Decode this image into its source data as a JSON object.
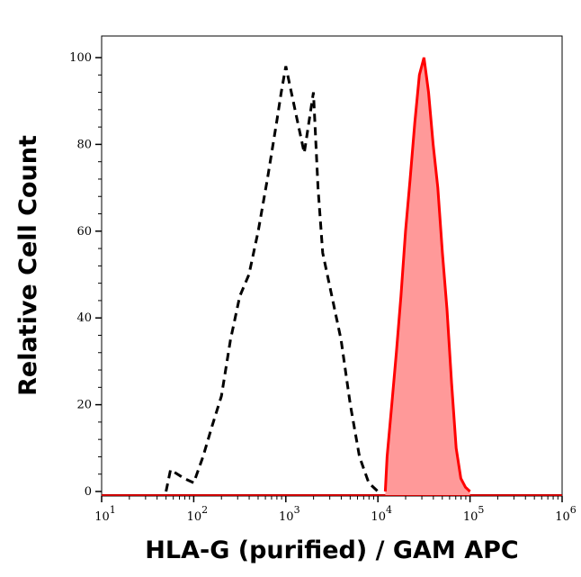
{
  "chart_data": {
    "type": "area",
    "title": "",
    "xlabel": "HLA-G (purified) / GAM APC",
    "ylabel": "Relative Cell Count",
    "xscale": "log",
    "xlim": [
      10,
      1000000
    ],
    "ylim": [
      0,
      105
    ],
    "grid": false,
    "x_tick_labels": [
      {
        "base": "10",
        "exp": "1",
        "value": 10
      },
      {
        "base": "10",
        "exp": "2",
        "value": 100
      },
      {
        "base": "10",
        "exp": "3",
        "value": 1000
      },
      {
        "base": "10",
        "exp": "4",
        "value": 10000
      },
      {
        "base": "10",
        "exp": "5",
        "value": 100000
      },
      {
        "base": "10",
        "exp": "6",
        "value": 1000000
      }
    ],
    "y_ticks": [
      "0",
      "20",
      "40",
      "60",
      "80",
      "100"
    ],
    "series": [
      {
        "style": "dashed-line",
        "color": "#000000",
        "x": [
          50,
          56,
          79,
          100,
          126,
          158,
          200,
          251,
          316,
          398,
          501,
          631,
          794,
          891,
          1000,
          1259,
          1585,
          1995,
          2239,
          2512,
          3162,
          3981,
          5012,
          6310,
          7943,
          10000
        ],
        "y": [
          0,
          5,
          3,
          2,
          8,
          15,
          22,
          35,
          45,
          50,
          60,
          72,
          85,
          92,
          98,
          88,
          78,
          92,
          70,
          55,
          45,
          35,
          20,
          8,
          2,
          0
        ]
      },
      {
        "style": "filled",
        "color": "#ff0000",
        "fill": "#ff9999",
        "x": [
          12023,
          12589,
          14125,
          15849,
          17783,
          19953,
          22387,
          25119,
          28184,
          31623,
          35481,
          39811,
          44668,
          50119,
          56234,
          63096,
          70795,
          79433,
          89125,
          100000
        ],
        "y": [
          0,
          8,
          20,
          32,
          45,
          60,
          72,
          85,
          96,
          100,
          92,
          80,
          70,
          55,
          42,
          25,
          10,
          3,
          1,
          0
        ]
      }
    ]
  }
}
